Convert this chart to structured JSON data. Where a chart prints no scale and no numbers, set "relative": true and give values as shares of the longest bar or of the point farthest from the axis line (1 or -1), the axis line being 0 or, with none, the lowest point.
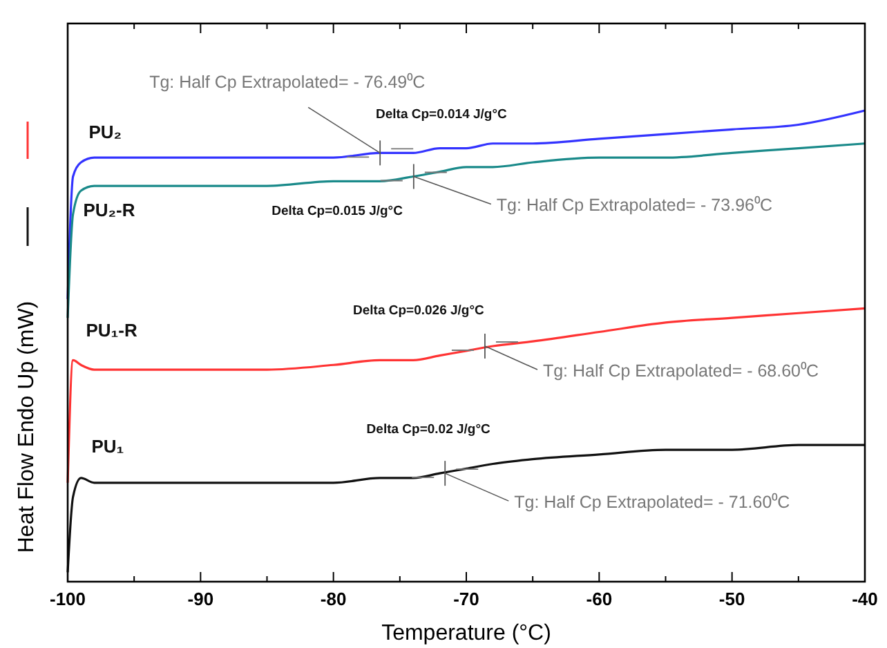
{
  "chart_data": {
    "type": "line",
    "relative": true,
    "xlabel": "Temperature (°C)",
    "ylabel": "Heat Flow Endo Up (mW)",
    "xlim": [
      -100,
      -40
    ],
    "xticks": [
      -100,
      -90,
      -80,
      -70,
      -60,
      -50,
      -40
    ],
    "grid": false,
    "marker": "none",
    "line_style": "solid",
    "x": [
      -100,
      -99.6,
      -99,
      -98,
      -95,
      -90,
      -85,
      -80,
      -76.5,
      -74,
      -72,
      -70,
      -68,
      -65,
      -60,
      -55,
      -50,
      -45,
      -40
    ],
    "series": [
      {
        "name": "PU₂",
        "color": "#3333ff",
        "values": [
          0.6,
          0.86,
          0.89,
          0.9,
          0.9,
          0.9,
          0.9,
          0.9,
          0.91,
          0.91,
          0.92,
          0.92,
          0.93,
          0.93,
          0.94,
          0.95,
          0.96,
          0.97,
          1.0
        ]
      },
      {
        "name": "PU₂-R",
        "color": "#1a8a8a",
        "values": [
          0.56,
          0.78,
          0.83,
          0.84,
          0.84,
          0.84,
          0.84,
          0.85,
          0.85,
          0.86,
          0.87,
          0.88,
          0.88,
          0.89,
          0.9,
          0.9,
          0.91,
          0.92,
          0.93
        ]
      },
      {
        "name": "PU₁-R",
        "color": "#ff3333",
        "values": [
          0.21,
          0.47,
          0.46,
          0.45,
          0.45,
          0.45,
          0.45,
          0.46,
          0.47,
          0.47,
          0.48,
          0.49,
          0.5,
          0.51,
          0.53,
          0.55,
          0.56,
          0.57,
          0.58
        ]
      },
      {
        "name": "PU₁",
        "color": "#111111",
        "values": [
          0.02,
          0.18,
          0.22,
          0.21,
          0.21,
          0.21,
          0.21,
          0.21,
          0.22,
          0.22,
          0.23,
          0.24,
          0.25,
          0.26,
          0.27,
          0.28,
          0.28,
          0.29,
          0.29
        ]
      }
    ],
    "annotations": [
      {
        "text": "Tg: Half Cp Extrapolated= - 76.49⁰C",
        "x": -76.49,
        "y": 0.91
      },
      {
        "text": "Tg: Half Cp Extrapolated= - 73.96⁰C",
        "x": -73.96,
        "y": 0.86
      },
      {
        "text": "Tg: Half Cp Extrapolated= - 68.60⁰C",
        "x": -68.6,
        "y": 0.5
      },
      {
        "text": "Tg: Half Cp Extrapolated= - 71.60⁰C",
        "x": -71.6,
        "y": 0.23
      },
      {
        "text": "Delta Cp=0.014 J/g°C",
        "x": -72.5,
        "y": 0.92
      },
      {
        "text": "Delta Cp=0.015 J/g°C",
        "x": -74,
        "y": 0.86
      },
      {
        "text": "Delta Cp=0.026 J/g°C",
        "x": -68.6,
        "y": 0.5
      },
      {
        "text": "Delta Cp=0.02 J/g°C",
        "x": -71.6,
        "y": 0.23
      }
    ]
  }
}
